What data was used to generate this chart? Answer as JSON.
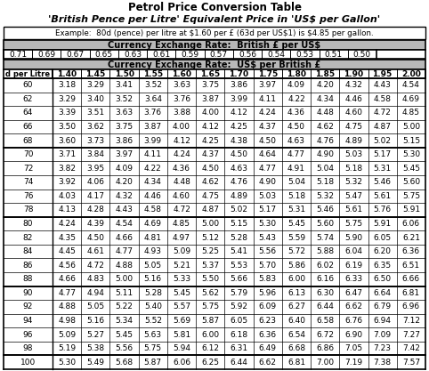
{
  "title1": "Petrol Price Conversion Table",
  "title2": "'British Pence per Litre' Equivalent Price in 'US$ per Gallon'",
  "example_text": "Example:  80d (pence) per litre at $1.60 per £ (63d per US$1) is $4.85 per gallon.",
  "header1": "Currency Exchange Rate:  British £ per US$",
  "gbp_per_usd": [
    "0.71",
    "0.69",
    "0.67",
    "0.65",
    "0.63",
    "0.61",
    "0.59",
    "0.57",
    "0.56",
    "0.54",
    "0.53",
    "0.51",
    "0.50"
  ],
  "header2": "Currency Exchange Rate:  US$ per British £",
  "usd_per_gbp": [
    "1.40",
    "1.45",
    "1.50",
    "1.55",
    "1.60",
    "1.65",
    "1.70",
    "1.75",
    "1.80",
    "1.85",
    "1.90",
    "1.95",
    "2.00"
  ],
  "col_header": "d per Litre",
  "pence_values": [
    60,
    62,
    64,
    66,
    68,
    70,
    72,
    74,
    76,
    78,
    80,
    82,
    84,
    86,
    88,
    90,
    92,
    94,
    96,
    98,
    100
  ],
  "table_data": [
    [
      "3.18",
      "3.29",
      "3.41",
      "3.52",
      "3.63",
      "3.75",
      "3.86",
      "3.97",
      "4.09",
      "4.20",
      "4.32",
      "4.43",
      "4.54"
    ],
    [
      "3.29",
      "3.40",
      "3.52",
      "3.64",
      "3.76",
      "3.87",
      "3.99",
      "4.11",
      "4.22",
      "4.34",
      "4.46",
      "4.58",
      "4.69"
    ],
    [
      "3.39",
      "3.51",
      "3.63",
      "3.76",
      "3.88",
      "4.00",
      "4.12",
      "4.24",
      "4.36",
      "4.48",
      "4.60",
      "4.72",
      "4.85"
    ],
    [
      "3.50",
      "3.62",
      "3.75",
      "3.87",
      "4.00",
      "4.12",
      "4.25",
      "4.37",
      "4.50",
      "4.62",
      "4.75",
      "4.87",
      "5.00"
    ],
    [
      "3.60",
      "3.73",
      "3.86",
      "3.99",
      "4.12",
      "4.25",
      "4.38",
      "4.50",
      "4.63",
      "4.76",
      "4.89",
      "5.02",
      "5.15"
    ],
    [
      "3.71",
      "3.84",
      "3.97",
      "4.11",
      "4.24",
      "4.37",
      "4.50",
      "4.64",
      "4.77",
      "4.90",
      "5.03",
      "5.17",
      "5.30"
    ],
    [
      "3.82",
      "3.95",
      "4.09",
      "4.22",
      "4.36",
      "4.50",
      "4.63",
      "4.77",
      "4.91",
      "5.04",
      "5.18",
      "5.31",
      "5.45"
    ],
    [
      "3.92",
      "4.06",
      "4.20",
      "4.34",
      "4.48",
      "4.62",
      "4.76",
      "4.90",
      "5.04",
      "5.18",
      "5.32",
      "5.46",
      "5.60"
    ],
    [
      "4.03",
      "4.17",
      "4.32",
      "4.46",
      "4.60",
      "4.75",
      "4.89",
      "5.03",
      "5.18",
      "5.32",
      "5.47",
      "5.61",
      "5.75"
    ],
    [
      "4.13",
      "4.28",
      "4.43",
      "4.58",
      "4.72",
      "4.87",
      "5.02",
      "5.17",
      "5.31",
      "5.46",
      "5.61",
      "5.76",
      "5.91"
    ],
    [
      "4.24",
      "4.39",
      "4.54",
      "4.69",
      "4.85",
      "5.00",
      "5.15",
      "5.30",
      "5.45",
      "5.60",
      "5.75",
      "5.91",
      "6.06"
    ],
    [
      "4.35",
      "4.50",
      "4.66",
      "4.81",
      "4.97",
      "5.12",
      "5.28",
      "5.43",
      "5.59",
      "5.74",
      "5.90",
      "6.05",
      "6.21"
    ],
    [
      "4.45",
      "4.61",
      "4.77",
      "4.93",
      "5.09",
      "5.25",
      "5.41",
      "5.56",
      "5.72",
      "5.88",
      "6.04",
      "6.20",
      "6.36"
    ],
    [
      "4.56",
      "4.72",
      "4.88",
      "5.05",
      "5.21",
      "5.37",
      "5.53",
      "5.70",
      "5.86",
      "6.02",
      "6.19",
      "6.35",
      "6.51"
    ],
    [
      "4.66",
      "4.83",
      "5.00",
      "5.16",
      "5.33",
      "5.50",
      "5.66",
      "5.83",
      "6.00",
      "6.16",
      "6.33",
      "6.50",
      "6.66"
    ],
    [
      "4.77",
      "4.94",
      "5.11",
      "5.28",
      "5.45",
      "5.62",
      "5.79",
      "5.96",
      "6.13",
      "6.30",
      "6.47",
      "6.64",
      "6.81"
    ],
    [
      "4.88",
      "5.05",
      "5.22",
      "5.40",
      "5.57",
      "5.75",
      "5.92",
      "6.09",
      "6.27",
      "6.44",
      "6.62",
      "6.79",
      "6.96"
    ],
    [
      "4.98",
      "5.16",
      "5.34",
      "5.52",
      "5.69",
      "5.87",
      "6.05",
      "6.23",
      "6.40",
      "6.58",
      "6.76",
      "6.94",
      "7.12"
    ],
    [
      "5.09",
      "5.27",
      "5.45",
      "5.63",
      "5.81",
      "6.00",
      "6.18",
      "6.36",
      "6.54",
      "6.72",
      "6.90",
      "7.09",
      "7.27"
    ],
    [
      "5.19",
      "5.38",
      "5.56",
      "5.75",
      "5.94",
      "6.12",
      "6.31",
      "6.49",
      "6.68",
      "6.86",
      "7.05",
      "7.23",
      "7.42"
    ],
    [
      "5.30",
      "5.49",
      "5.68",
      "5.87",
      "6.06",
      "6.25",
      "6.44",
      "6.62",
      "6.81",
      "7.00",
      "7.19",
      "7.38",
      "7.57"
    ]
  ],
  "group_separators_after": [
    4,
    9,
    14,
    19
  ],
  "bg_color": "#ffffff"
}
